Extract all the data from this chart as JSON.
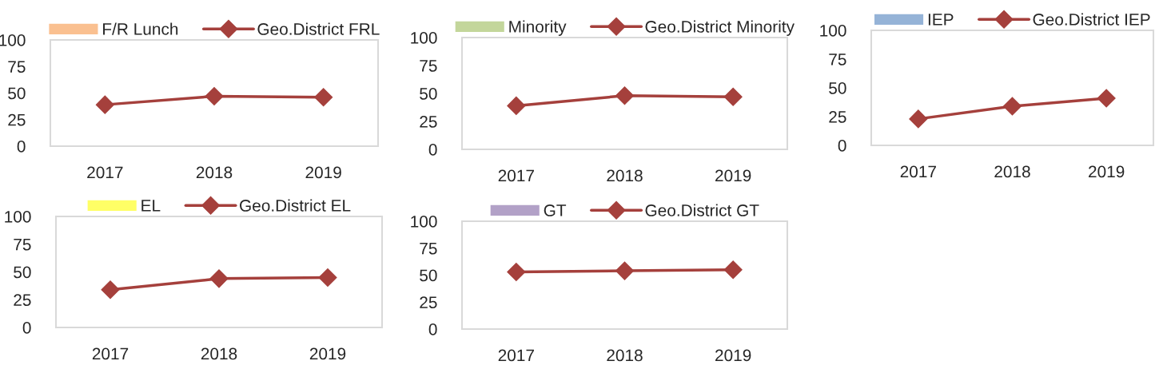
{
  "chart_data": [
    {
      "type": "line",
      "categories": [
        "2017",
        "2018",
        "2019"
      ],
      "ylim": [
        0,
        100
      ],
      "yticks": [
        0,
        25,
        50,
        75,
        100
      ],
      "grid": false,
      "legend": "top",
      "marker": "diamond",
      "series": [
        {
          "name": "F/R Lunch",
          "type": "bar",
          "color": "#fac090",
          "values": [
            null,
            null,
            null
          ]
        },
        {
          "name": "Geo.District FRL",
          "color": "#a5403c",
          "values": [
            39,
            47,
            46
          ]
        }
      ]
    },
    {
      "type": "line",
      "categories": [
        "2017",
        "2018",
        "2019"
      ],
      "ylim": [
        0,
        100
      ],
      "yticks": [
        0,
        25,
        50,
        75,
        100
      ],
      "grid": false,
      "legend": "top",
      "marker": "diamond",
      "series": [
        {
          "name": "Minority",
          "type": "bar",
          "color": "#c3d69b",
          "values": [
            null,
            null,
            null
          ]
        },
        {
          "name": "Geo.District Minority",
          "color": "#a5403c",
          "values": [
            39,
            48,
            47
          ]
        }
      ]
    },
    {
      "type": "line",
      "categories": [
        "2017",
        "2018",
        "2019"
      ],
      "ylim": [
        0,
        100
      ],
      "yticks": [
        0,
        25,
        50,
        75,
        100
      ],
      "grid": false,
      "legend": "top",
      "marker": "diamond",
      "series": [
        {
          "name": "IEP",
          "type": "bar",
          "color": "#95b3d7",
          "values": [
            null,
            null,
            null
          ]
        },
        {
          "name": "Geo.District IEP",
          "color": "#a5403c",
          "values": [
            23,
            34,
            41
          ]
        }
      ]
    },
    {
      "type": "line",
      "categories": [
        "2017",
        "2018",
        "2019"
      ],
      "ylim": [
        0,
        100
      ],
      "yticks": [
        0,
        25,
        50,
        75,
        100
      ],
      "grid": false,
      "legend": "top",
      "marker": "diamond",
      "series": [
        {
          "name": "EL",
          "type": "bar",
          "color": "#ffff66",
          "values": [
            null,
            null,
            null
          ]
        },
        {
          "name": "Geo.District EL",
          "color": "#a5403c",
          "values": [
            34,
            44,
            45
          ]
        }
      ]
    },
    {
      "type": "line",
      "categories": [
        "2017",
        "2018",
        "2019"
      ],
      "ylim": [
        0,
        100
      ],
      "yticks": [
        0,
        25,
        50,
        75,
        100
      ],
      "grid": false,
      "legend": "top",
      "marker": "diamond",
      "series": [
        {
          "name": "GT",
          "type": "bar",
          "color": "#b2a1c7",
          "values": [
            null,
            null,
            null
          ]
        },
        {
          "name": "Geo.District GT",
          "color": "#a5403c",
          "values": [
            53,
            54,
            55
          ]
        }
      ]
    }
  ]
}
